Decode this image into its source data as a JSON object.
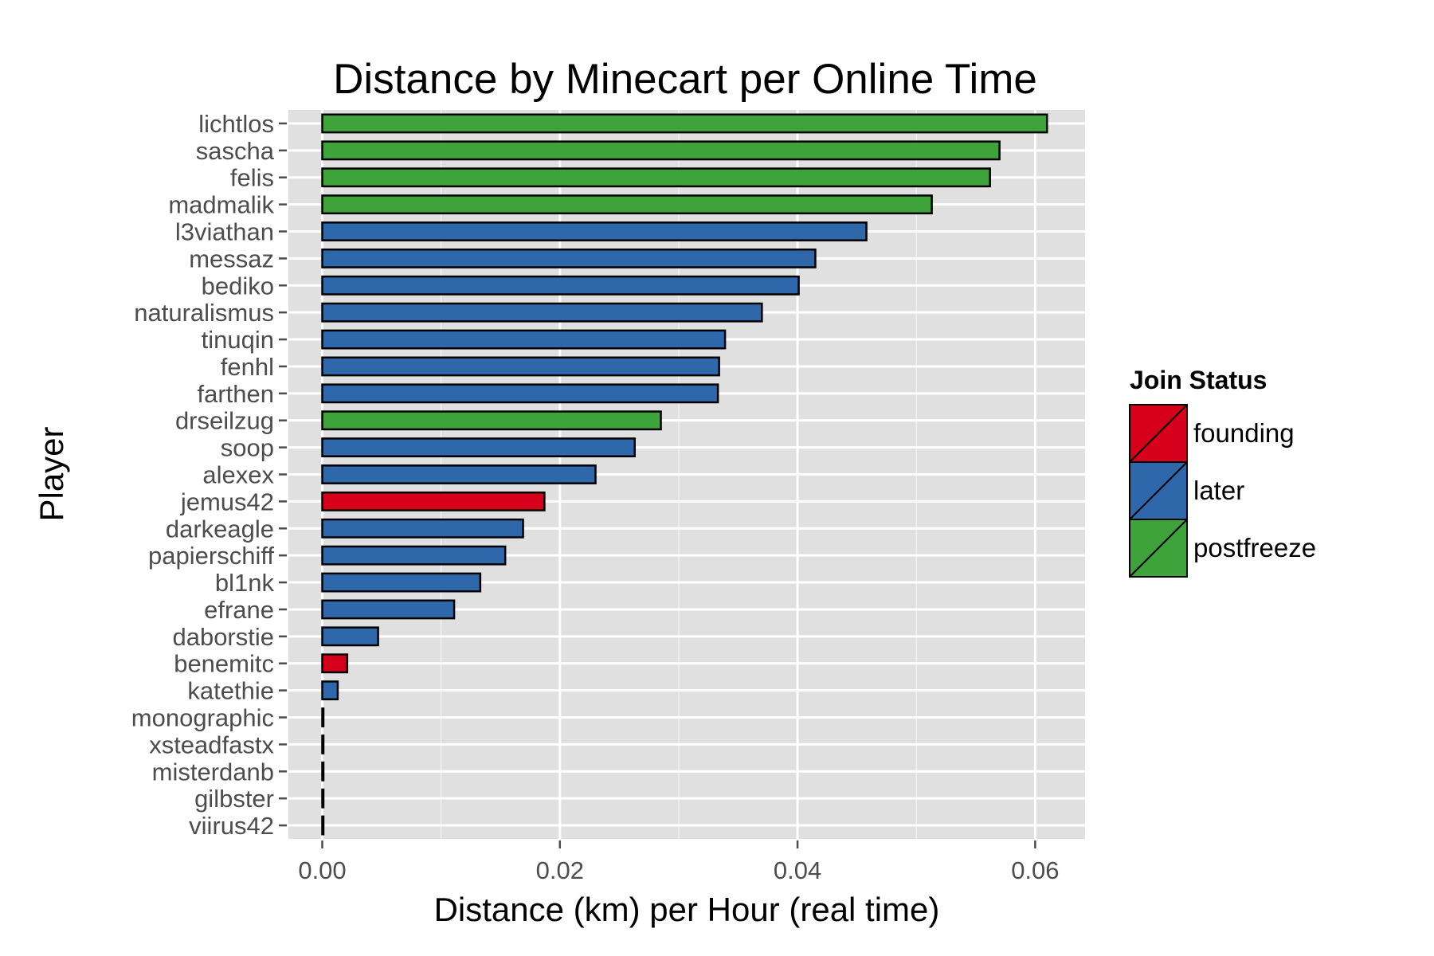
{
  "chart_data": {
    "type": "bar",
    "orientation": "horizontal",
    "title": "Distance by Minecart per Online Time",
    "xlabel": "Distance (km) per Hour (real time)",
    "ylabel": "Player",
    "xlim": [
      -0.00285,
      0.0642
    ],
    "xticks": [
      "0.00",
      "0.02",
      "0.04",
      "0.06"
    ],
    "xtick_values": [
      0,
      0.02,
      0.04,
      0.06
    ],
    "grid": true,
    "legend": {
      "title": "Join Status",
      "placement": "right",
      "entries": [
        {
          "label": "founding",
          "color": "#d7001b"
        },
        {
          "label": "later",
          "color": "#2f68aa"
        },
        {
          "label": "postfreeze",
          "color": "#3ea33b"
        }
      ]
    },
    "bars": [
      {
        "player": "lichtlos",
        "value": 0.061,
        "status": "postfreeze"
      },
      {
        "player": "sascha",
        "value": 0.057,
        "status": "postfreeze"
      },
      {
        "player": "felis",
        "value": 0.0562,
        "status": "postfreeze"
      },
      {
        "player": "madmalik",
        "value": 0.0513,
        "status": "postfreeze"
      },
      {
        "player": "l3viathan",
        "value": 0.0458,
        "status": "later"
      },
      {
        "player": "messaz",
        "value": 0.0415,
        "status": "later"
      },
      {
        "player": "bediko",
        "value": 0.0401,
        "status": "later"
      },
      {
        "player": "naturalismus",
        "value": 0.037,
        "status": "later"
      },
      {
        "player": "tinuqin",
        "value": 0.0339,
        "status": "later"
      },
      {
        "player": "fenhl",
        "value": 0.0334,
        "status": "later"
      },
      {
        "player": "farthen",
        "value": 0.0333,
        "status": "later"
      },
      {
        "player": "drseilzug",
        "value": 0.0285,
        "status": "postfreeze"
      },
      {
        "player": "soop",
        "value": 0.0263,
        "status": "later"
      },
      {
        "player": "alexex",
        "value": 0.023,
        "status": "later"
      },
      {
        "player": "jemus42",
        "value": 0.0187,
        "status": "founding"
      },
      {
        "player": "darkeagle",
        "value": 0.0169,
        "status": "later"
      },
      {
        "player": "papierschiff",
        "value": 0.0154,
        "status": "later"
      },
      {
        "player": "bl1nk",
        "value": 0.0133,
        "status": "later"
      },
      {
        "player": "efrane",
        "value": 0.0111,
        "status": "later"
      },
      {
        "player": "daborstie",
        "value": 0.0047,
        "status": "later"
      },
      {
        "player": "benemitc",
        "value": 0.0021,
        "status": "founding"
      },
      {
        "player": "katethie",
        "value": 0.0013,
        "status": "later"
      },
      {
        "player": "monographic",
        "value": 0.0001,
        "status": "later"
      },
      {
        "player": "xsteadfastx",
        "value": 0.0001,
        "status": "later"
      },
      {
        "player": "misterdanb",
        "value": 0.0001,
        "status": "later"
      },
      {
        "player": "gilbster",
        "value": 0.0001,
        "status": "later"
      },
      {
        "player": "viirus42",
        "value": 0.0001,
        "status": "later"
      }
    ]
  }
}
